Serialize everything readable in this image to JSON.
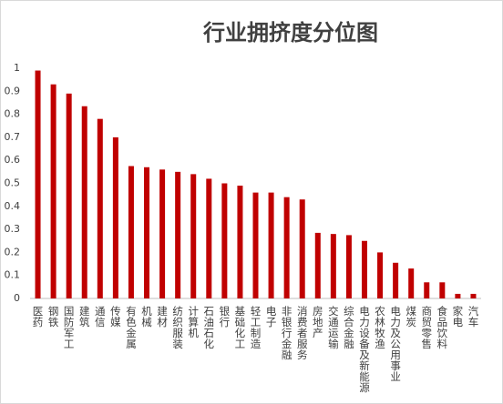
{
  "chart_data": {
    "type": "bar",
    "title": "行业拥挤度分位图",
    "categories": [
      "医药",
      "钢铁",
      "国防军工",
      "建筑",
      "通信",
      "传媒",
      "有色金属",
      "机械",
      "建材",
      "纺织服装",
      "计算机",
      "石油石化",
      "银行",
      "基础化工",
      "轻工制造",
      "电子",
      "非银行金融",
      "消费者服务",
      "房地产",
      "交通运输",
      "综合金融",
      "电力设备及新能源",
      "农林牧渔",
      "电力及公用事业",
      "煤炭",
      "商贸零售",
      "食品饮料",
      "家电",
      "汽车"
    ],
    "values": [
      0.99,
      0.93,
      0.89,
      0.835,
      0.78,
      0.7,
      0.575,
      0.57,
      0.56,
      0.55,
      0.54,
      0.52,
      0.5,
      0.49,
      0.46,
      0.46,
      0.44,
      0.43,
      0.285,
      0.28,
      0.275,
      0.25,
      0.2,
      0.155,
      0.13,
      0.07,
      0.07,
      0.02,
      0.02
    ],
    "color": "#c00000",
    "ylim": [
      0,
      1
    ],
    "yticks": [
      0,
      0.1,
      0.2,
      0.3,
      0.4,
      0.5,
      0.6,
      0.7,
      0.8,
      0.9,
      1
    ],
    "grid": false
  }
}
